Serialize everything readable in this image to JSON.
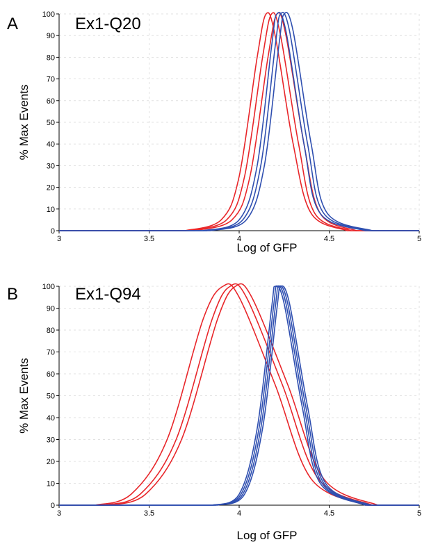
{
  "chart_data": [
    {
      "type": "line",
      "panel": "A",
      "title": "Ex1-Q20",
      "xlabel": "Log of GFP",
      "ylabel": "% Max Events",
      "xlim": [
        3,
        5
      ],
      "ylim": [
        0,
        100
      ],
      "xticks": [
        "3",
        "3.5",
        "4",
        "4.5",
        "5"
      ],
      "yticks": [
        "0",
        "10",
        "20",
        "30",
        "40",
        "50",
        "60",
        "70",
        "80",
        "90",
        "100"
      ],
      "grid": true,
      "colors": {
        "red": "#e8262a",
        "blue": "#2f4fb0"
      },
      "series": [
        {
          "color": "red",
          "x": [
            3.7,
            3.9,
            4.0,
            4.1,
            4.15,
            4.2,
            4.3,
            4.4,
            4.6
          ],
          "y": [
            0,
            5,
            25,
            80,
            100,
            90,
            40,
            8,
            0
          ]
        },
        {
          "color": "red",
          "x": [
            3.72,
            3.93,
            4.03,
            4.13,
            4.18,
            4.23,
            4.33,
            4.42,
            4.62
          ],
          "y": [
            0,
            5,
            25,
            80,
            100,
            90,
            40,
            8,
            0
          ]
        },
        {
          "color": "red",
          "x": [
            3.75,
            3.96,
            4.06,
            4.16,
            4.21,
            4.26,
            4.36,
            4.45,
            4.65
          ],
          "y": [
            0,
            5,
            25,
            80,
            100,
            90,
            40,
            8,
            0
          ]
        },
        {
          "color": "blue",
          "x": [
            3.8,
            4.0,
            4.1,
            4.18,
            4.21,
            4.26,
            4.36,
            4.45,
            4.7
          ],
          "y": [
            0,
            5,
            30,
            85,
            100,
            92,
            40,
            8,
            0
          ]
        },
        {
          "color": "blue",
          "x": [
            3.82,
            4.02,
            4.12,
            4.2,
            4.23,
            4.28,
            4.38,
            4.47,
            4.72
          ],
          "y": [
            0,
            5,
            30,
            85,
            100,
            92,
            40,
            8,
            0
          ]
        },
        {
          "color": "blue",
          "x": [
            3.84,
            4.04,
            4.14,
            4.22,
            4.25,
            4.3,
            4.4,
            4.49,
            4.74
          ],
          "y": [
            0,
            5,
            30,
            85,
            100,
            92,
            40,
            8,
            0
          ]
        }
      ]
    },
    {
      "type": "line",
      "panel": "B",
      "title": "Ex1-Q94",
      "xlabel": "Log of GFP",
      "ylabel": "% Max Events",
      "xlim": [
        3,
        5
      ],
      "ylim": [
        0,
        100
      ],
      "xticks": [
        "3",
        "3.5",
        "4",
        "4.5",
        "5"
      ],
      "yticks": [
        "0",
        "10",
        "20",
        "30",
        "40",
        "50",
        "60",
        "70",
        "80",
        "90",
        "100"
      ],
      "grid": true,
      "colors": {
        "red": "#e8262a",
        "blue": "#2f4fb0"
      },
      "series": [
        {
          "color": "red",
          "x": [
            3.2,
            3.4,
            3.6,
            3.8,
            3.91,
            4.0,
            4.2,
            4.4,
            4.7
          ],
          "y": [
            0,
            5,
            30,
            85,
            100,
            95,
            55,
            12,
            0
          ]
        },
        {
          "color": "red",
          "x": [
            3.25,
            3.45,
            3.65,
            3.85,
            3.95,
            4.04,
            4.24,
            4.44,
            4.74
          ],
          "y": [
            0,
            5,
            30,
            85,
            100,
            95,
            55,
            12,
            0
          ]
        },
        {
          "color": "red",
          "x": [
            3.28,
            3.48,
            3.68,
            3.88,
            3.98,
            4.07,
            4.27,
            4.47,
            4.77
          ],
          "y": [
            0,
            5,
            30,
            85,
            100,
            95,
            55,
            12,
            0
          ]
        },
        {
          "color": "blue",
          "x": [
            3.85,
            4.0,
            4.1,
            4.18,
            4.2,
            4.25,
            4.35,
            4.45,
            4.7
          ],
          "y": [
            0,
            5,
            35,
            90,
            100,
            92,
            45,
            10,
            0
          ]
        },
        {
          "color": "blue",
          "x": [
            3.86,
            4.01,
            4.11,
            4.19,
            4.21,
            4.26,
            4.36,
            4.46,
            4.71
          ],
          "y": [
            0,
            5,
            35,
            90,
            100,
            92,
            45,
            10,
            0
          ]
        },
        {
          "color": "blue",
          "x": [
            3.87,
            4.02,
            4.12,
            4.2,
            4.22,
            4.27,
            4.37,
            4.47,
            4.72
          ],
          "y": [
            0,
            5,
            35,
            90,
            100,
            92,
            45,
            10,
            0
          ]
        },
        {
          "color": "blue",
          "x": [
            3.88,
            4.03,
            4.13,
            4.21,
            4.23,
            4.28,
            4.38,
            4.48,
            4.73
          ],
          "y": [
            0,
            5,
            35,
            90,
            100,
            92,
            45,
            10,
            0
          ]
        }
      ]
    }
  ]
}
